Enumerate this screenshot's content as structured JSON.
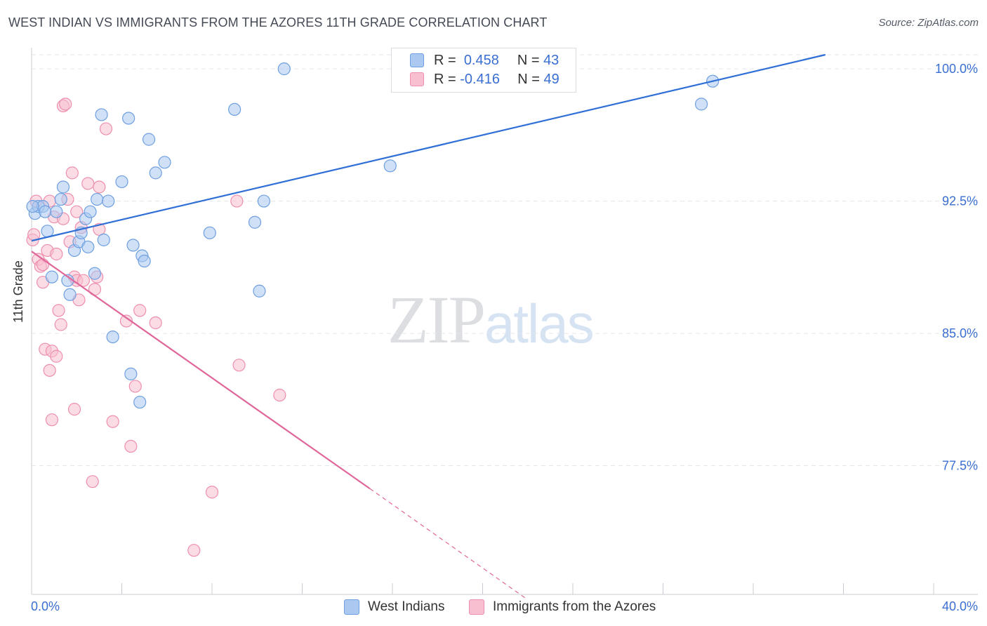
{
  "title": "WEST INDIAN VS IMMIGRANTS FROM THE AZORES 11TH GRADE CORRELATION CHART",
  "source": "Source: ZipAtlas.com",
  "watermark": {
    "zip": "ZIP",
    "atlas": "atlas"
  },
  "colors": {
    "blue_fill": "#aac8f0",
    "blue_stroke": "#6e9fe0",
    "blue_line": "#2f6fd6",
    "pink_fill": "#f7bfd0",
    "pink_stroke": "#ee8fae",
    "pink_line": "#e0679a",
    "grid": "#e3e6ea",
    "tick_text": "#3a6fd1"
  },
  "legend": {
    "rows": [
      {
        "r_label": "R =",
        "r_value": "0.458",
        "n_label": "N =",
        "n_value": "43"
      },
      {
        "r_label": "R =",
        "r_value": "-0.416",
        "n_label": "N =",
        "n_value": "49"
      }
    ]
  },
  "bottom_legend": {
    "series1": "West Indians",
    "series2": "Immigrants from the Azores"
  },
  "chart_data": {
    "type": "scatter",
    "title": "WEST INDIAN VS IMMIGRANTS FROM THE AZORES 11TH GRADE CORRELATION CHART",
    "xlabel": "",
    "ylabel": "11th Grade",
    "xlim": [
      0,
      40
    ],
    "ylim": [
      70.2,
      100.8
    ],
    "x_tick_labels": [
      "0.0%",
      "40.0%"
    ],
    "y_ticks": [
      77.5,
      85.0,
      92.5,
      100.0
    ],
    "y_tick_labels": [
      "77.5%",
      "85.0%",
      "92.5%",
      "100.0%"
    ],
    "grid": true,
    "series": [
      {
        "name": "West Indians",
        "r": 0.458,
        "n": 43,
        "trend": {
          "x": [
            0,
            35.2
          ],
          "y": [
            90.25,
            100.8
          ]
        },
        "points": [
          [
            0.15,
            91.8
          ],
          [
            0.3,
            92.2
          ],
          [
            0.5,
            92.2
          ],
          [
            0.6,
            91.9
          ],
          [
            0.7,
            90.8
          ],
          [
            0.9,
            88.2
          ],
          [
            1.1,
            91.9
          ],
          [
            1.3,
            92.6
          ],
          [
            1.4,
            93.3
          ],
          [
            1.6,
            88.0
          ],
          [
            1.7,
            87.2
          ],
          [
            1.9,
            89.7
          ],
          [
            2.1,
            90.2
          ],
          [
            2.2,
            90.7
          ],
          [
            2.4,
            91.5
          ],
          [
            2.5,
            89.9
          ],
          [
            2.6,
            91.9
          ],
          [
            2.8,
            88.4
          ],
          [
            2.9,
            92.6
          ],
          [
            3.1,
            97.4
          ],
          [
            3.2,
            90.3
          ],
          [
            3.4,
            92.5
          ],
          [
            3.6,
            84.8
          ],
          [
            4.0,
            93.6
          ],
          [
            4.3,
            97.2
          ],
          [
            4.4,
            82.7
          ],
          [
            4.5,
            90.0
          ],
          [
            4.8,
            81.1
          ],
          [
            4.9,
            89.4
          ],
          [
            5.0,
            89.1
          ],
          [
            5.2,
            96.0
          ],
          [
            5.5,
            94.1
          ],
          [
            5.9,
            94.7
          ],
          [
            7.9,
            90.7
          ],
          [
            9.0,
            97.7
          ],
          [
            9.9,
            91.3
          ],
          [
            10.1,
            87.4
          ],
          [
            10.3,
            92.5
          ],
          [
            11.2,
            100.0
          ],
          [
            15.9,
            94.5
          ],
          [
            29.7,
            98.0
          ],
          [
            30.2,
            99.3
          ],
          [
            0.05,
            92.2
          ]
        ]
      },
      {
        "name": "Immigrants from the Azores",
        "r": -0.416,
        "n": 49,
        "trend": {
          "x": [
            0,
            15.0
          ],
          "y": [
            89.65,
            76.2
          ]
        },
        "trend_dashed": {
          "x": [
            15.0,
            22.0
          ],
          "y": [
            76.2,
            69.9
          ]
        },
        "points": [
          [
            0.05,
            90.3
          ],
          [
            0.1,
            90.6
          ],
          [
            0.2,
            92.5
          ],
          [
            0.3,
            89.2
          ],
          [
            0.4,
            88.8
          ],
          [
            0.5,
            88.9
          ],
          [
            0.5,
            87.9
          ],
          [
            0.6,
            84.1
          ],
          [
            0.7,
            89.7
          ],
          [
            0.8,
            82.9
          ],
          [
            0.8,
            92.5
          ],
          [
            0.9,
            84.0
          ],
          [
            0.9,
            80.1
          ],
          [
            1.0,
            91.6
          ],
          [
            1.1,
            89.5
          ],
          [
            1.1,
            83.7
          ],
          [
            1.2,
            86.3
          ],
          [
            1.3,
            85.5
          ],
          [
            1.4,
            91.5
          ],
          [
            1.4,
            97.9
          ],
          [
            1.5,
            98.0
          ],
          [
            1.6,
            92.6
          ],
          [
            1.7,
            90.2
          ],
          [
            1.8,
            94.1
          ],
          [
            1.9,
            80.7
          ],
          [
            1.9,
            88.2
          ],
          [
            2.0,
            91.9
          ],
          [
            2.0,
            88.0
          ],
          [
            2.1,
            86.9
          ],
          [
            2.2,
            91.0
          ],
          [
            2.3,
            88.0
          ],
          [
            2.5,
            93.5
          ],
          [
            2.7,
            76.6
          ],
          [
            2.8,
            87.5
          ],
          [
            2.9,
            88.2
          ],
          [
            3.0,
            93.3
          ],
          [
            3.0,
            90.9
          ],
          [
            3.3,
            96.6
          ],
          [
            3.6,
            80.0
          ],
          [
            4.2,
            85.7
          ],
          [
            4.4,
            78.6
          ],
          [
            4.6,
            82.0
          ],
          [
            4.8,
            86.3
          ],
          [
            5.5,
            85.6
          ],
          [
            7.2,
            72.7
          ],
          [
            8.0,
            76.0
          ],
          [
            9.1,
            92.5
          ],
          [
            9.2,
            83.2
          ],
          [
            11.0,
            81.5
          ]
        ]
      }
    ]
  }
}
